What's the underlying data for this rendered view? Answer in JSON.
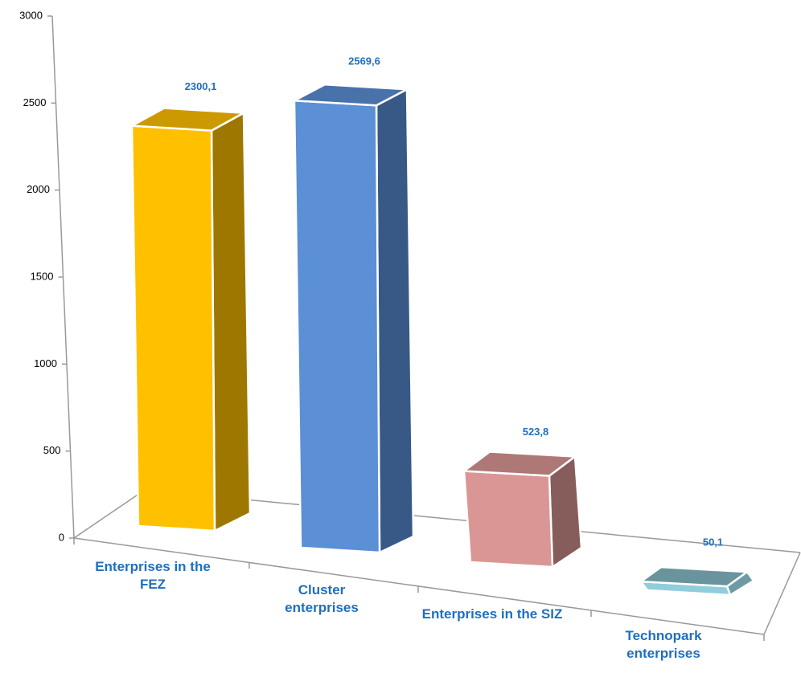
{
  "chart_data": {
    "type": "bar3d",
    "categories": [
      "Enterprises in the FEZ",
      "Cluster enterprises",
      "Enterprises in the SIZ",
      "Technopark enterprises"
    ],
    "values": [
      2300.1,
      2569.6,
      523.8,
      50.1
    ],
    "value_labels": [
      "2300,1",
      "2569,6",
      "523,8",
      "50,1"
    ],
    "colors": [
      "#FFC000",
      "#5B8FD6",
      "#DA9694",
      "#92CDDC"
    ],
    "ylim": [
      0,
      3000
    ],
    "yticks": [
      0,
      500,
      1000,
      1500,
      2000,
      2500,
      3000
    ],
    "grid": false
  }
}
